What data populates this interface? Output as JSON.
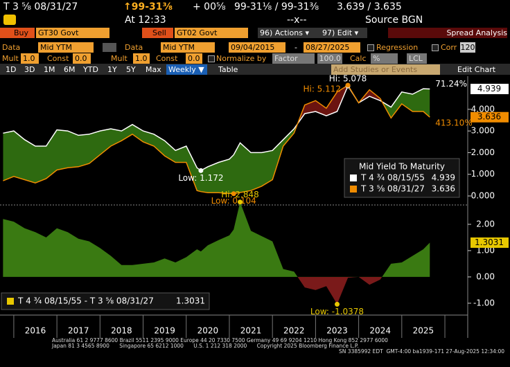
{
  "header": {
    "security": "T 3 ⅝ 08/31/27",
    "price": "↑99-31⅜",
    "change": "+ 00⅝",
    "bid_ask": "99-31⅛ / 99-31⅜",
    "yields": "3.639 / 3.635",
    "time": "At 12:33",
    "size": "--x--",
    "source": "Source BGN"
  },
  "toolbar": {
    "buy": "Buy",
    "buy_ticker": "GT30 Govt",
    "sell": "Sell",
    "sell_ticker": "GT02 Govt",
    "actions": "96) Actions ▾",
    "edit": "97) Edit ▾",
    "function": "Spread Analysis"
  },
  "settings": {
    "data_1": "Data",
    "field_1": "Mid YTM",
    "data_2": "Data",
    "field_2": "Mid YTM",
    "start": "09/04/2015",
    "dash": "-",
    "end": "08/27/2025",
    "regression": "Regression",
    "corr": "Corr",
    "corr_window": "120",
    "mult_1": "Mult",
    "mult_1_value": "1.0",
    "const_1": "Const",
    "const_1_value": "0.0",
    "mult_2": "Mult",
    "mult_2_value": "1.0",
    "const_2": "Const",
    "const_2_value": "0.0",
    "normalize": "Normalize by",
    "factor": "Factor",
    "factor_value": "100.0",
    "calc": "Calc",
    "calc_value": "%",
    "lcl": "LCL"
  },
  "periods": [
    "1D",
    "3D",
    "1M",
    "6M",
    "YTD",
    "1Y",
    "5Y",
    "Max"
  ],
  "frequency": "Weekly ▼",
  "table": "Table",
  "studies": "Add Studies or Events",
  "edit_chart": "Edit Chart",
  "footer": [
    "Australia 61 2 9777 8600 Brazil 5511 2395 9000 Europe 44 20 7330 7500 Germany 49 69 9204 1210 Hong Kong 852 2977 6000",
    "Japan 81 3 4565 8900      Singapore 65 6212 1000      U.S. 1 212 318 2000      Copyright 2025 Bloomberg Finance L.P.",
    "SN 3385992 EDT  GMT-4:00 ba1939-171 27-Aug-2025 12:34:00"
  ],
  "chart_data": [
    {
      "type": "line",
      "legend_title": "Mid Yield To Maturity",
      "legend": "lower right",
      "fill_above": "#2e6a10",
      "fill_below": "#6b1410",
      "xlim": [
        2015.68,
        2026.53
      ],
      "ylim": [
        -0.32,
        5.53
      ],
      "yticks": [
        {
          "value": 0,
          "label": "0.000"
        },
        {
          "value": 1,
          "label": "1.000"
        },
        {
          "value": 2,
          "label": "2.000"
        },
        {
          "value": 3,
          "label": "3.000"
        },
        {
          "value": 4,
          "label": "4.000"
        }
      ],
      "x": [
        2015.75,
        2016,
        2016.25,
        2016.5,
        2016.75,
        2017,
        2017.25,
        2017.5,
        2017.75,
        2018,
        2018.25,
        2018.5,
        2018.75,
        2019,
        2019.25,
        2019.5,
        2019.75,
        2020,
        2020.25,
        2020.34,
        2020.5,
        2020.75,
        2021,
        2021.1,
        2021.25,
        2021.5,
        2021.75,
        2022,
        2022.25,
        2022.5,
        2022.75,
        2023,
        2023.25,
        2023.5,
        2023.75,
        2024,
        2024.25,
        2024.5,
        2024.75,
        2025,
        2025.25,
        2025.5,
        2025.65
      ],
      "series": [
        {
          "name": "T 4 ¾ 08/15/55",
          "color": "#ffffff",
          "max_label": "Hi: 5.078",
          "min_label": "Low: 1.172",
          "change_label": "71.24%",
          "values": [
            2.9,
            3.0,
            2.6,
            2.3,
            2.3,
            3.05,
            3.0,
            2.8,
            2.85,
            3.0,
            3.1,
            3.0,
            3.3,
            3.0,
            2.85,
            2.55,
            2.1,
            2.3,
            1.3,
            1.172,
            1.35,
            1.55,
            1.7,
            1.9,
            2.45,
            2.0,
            2.0,
            2.1,
            2.6,
            3.1,
            3.8,
            3.9,
            3.7,
            3.9,
            5.078,
            4.3,
            4.6,
            4.4,
            4.1,
            4.8,
            4.7,
            4.95,
            4.939
          ]
        },
        {
          "name": "T 3 ⅝ 08/31/27",
          "color": "#f08c00",
          "max_label": "Hi: 5.112",
          "min_label": "Low: 0.104",
          "change_label": "413.10%",
          "values": [
            0.7,
            0.9,
            0.75,
            0.6,
            0.8,
            1.2,
            1.3,
            1.35,
            1.5,
            1.9,
            2.3,
            2.55,
            2.85,
            2.5,
            2.3,
            1.85,
            1.55,
            1.55,
            0.25,
            0.2,
            0.15,
            0.15,
            0.12,
            0.104,
            0.16,
            0.25,
            0.45,
            0.75,
            2.3,
            2.9,
            4.2,
            4.4,
            4.05,
            4.8,
            5.112,
            4.3,
            4.9,
            4.5,
            3.6,
            4.25,
            3.9,
            3.9,
            3.636
          ]
        }
      ]
    },
    {
      "type": "area",
      "legend": "lower left",
      "fill_positive": "#3a7a12",
      "fill_negative": "#7a1a1a",
      "xlim": [
        2015.68,
        2026.53
      ],
      "ylim": [
        -1.45,
        2.63
      ],
      "yticks": [
        {
          "value": -1,
          "label": "-1.00"
        },
        {
          "value": 0,
          "label": "0.00"
        },
        {
          "value": 1,
          "label": "1.00"
        },
        {
          "value": 2,
          "label": "2.00"
        }
      ],
      "xticks": [
        {
          "value": 2016.5,
          "label": "2016"
        },
        {
          "value": 2017.5,
          "label": "2017"
        },
        {
          "value": 2018.5,
          "label": "2018"
        },
        {
          "value": 2019.5,
          "label": "2019"
        },
        {
          "value": 2020.5,
          "label": "2020"
        },
        {
          "value": 2021.5,
          "label": "2021"
        },
        {
          "value": 2022.5,
          "label": "2022"
        },
        {
          "value": 2023.5,
          "label": "2023"
        },
        {
          "value": 2024.5,
          "label": "2024"
        },
        {
          "value": 2025.5,
          "label": "2025"
        }
      ],
      "x": [
        2015.75,
        2016,
        2016.25,
        2016.5,
        2016.75,
        2017,
        2017.25,
        2017.5,
        2017.75,
        2018,
        2018.25,
        2018.5,
        2018.75,
        2019,
        2019.25,
        2019.5,
        2019.75,
        2020,
        2020.25,
        2020.34,
        2020.5,
        2020.75,
        2021,
        2021.1,
        2021.25,
        2021.5,
        2021.75,
        2022,
        2022.25,
        2022.5,
        2022.75,
        2023,
        2023.25,
        2023.5,
        2023.75,
        2024,
        2024.25,
        2024.5,
        2024.75,
        2025,
        2025.25,
        2025.5,
        2025.65
      ],
      "series": [
        {
          "name": "T 4 ¾ 08/15/55 - T 3 ⅝ 08/31/27",
          "color": "#e8c800",
          "max_label": "Hi: 2.848",
          "min_label": "Low: -1.0378",
          "values": [
            2.2,
            2.1,
            1.85,
            1.7,
            1.5,
            1.85,
            1.7,
            1.45,
            1.35,
            1.1,
            0.8,
            0.45,
            0.45,
            0.5,
            0.55,
            0.7,
            0.55,
            0.75,
            1.05,
            0.97,
            1.2,
            1.4,
            1.58,
            1.8,
            2.848,
            1.75,
            1.55,
            1.35,
            0.3,
            0.2,
            -0.4,
            -0.5,
            -0.35,
            -1.0378,
            -0.03,
            0.0,
            -0.3,
            -0.1,
            0.5,
            0.55,
            0.8,
            1.05,
            1.3031
          ]
        }
      ]
    }
  ]
}
